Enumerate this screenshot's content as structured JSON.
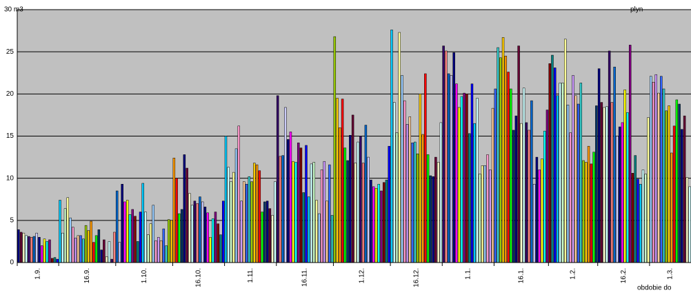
{
  "chart_data": {
    "type": "bar",
    "title": "plyn",
    "x_label": "obdobie do",
    "categories": [
      "1.9.",
      null,
      null,
      null,
      null,
      null,
      null,
      null,
      null,
      null,
      null,
      null,
      null,
      null,
      null,
      null,
      "16.9.",
      null,
      null,
      null,
      null,
      null,
      null,
      null,
      null,
      null,
      null,
      null,
      null,
      null,
      null,
      null,
      null,
      null,
      null,
      null,
      null,
      null,
      "1.10.",
      null,
      null,
      null,
      null,
      null,
      null,
      null,
      null,
      null,
      null,
      null,
      null,
      null,
      null,
      null,
      null,
      null,
      null,
      null,
      null,
      null,
      "16.10.",
      null,
      null,
      null,
      null,
      null,
      null,
      null,
      null,
      null,
      null,
      null,
      null,
      null,
      null,
      null,
      null,
      null,
      null,
      null,
      "1.11.",
      null,
      null,
      null,
      null,
      null,
      null,
      null,
      null,
      null,
      null,
      null,
      null,
      null,
      null,
      null,
      null,
      null,
      null,
      null,
      "16.11.",
      null,
      null,
      null,
      null,
      null,
      null,
      null,
      null,
      null,
      null,
      null,
      null,
      null,
      null,
      null,
      null,
      null,
      null,
      null,
      null,
      null,
      "1.12.",
      null,
      null,
      null,
      null,
      null,
      null,
      null,
      null,
      null,
      null,
      null,
      null,
      null,
      null,
      null,
      null,
      null,
      null,
      null,
      null,
      null,
      "16.12.",
      null,
      null,
      null,
      null,
      null,
      null,
      null,
      null,
      null,
      null,
      null,
      null,
      null,
      null,
      null,
      null,
      null,
      null,
      null,
      "1.1.",
      null,
      null,
      null,
      null,
      null,
      null,
      null,
      null,
      null,
      null,
      null,
      null,
      null,
      null,
      null,
      null,
      null,
      null,
      null,
      "16.1.",
      null,
      null,
      null,
      null,
      null,
      null,
      null,
      null,
      null,
      null,
      null,
      null,
      null,
      null,
      null,
      null,
      null,
      null,
      null,
      null,
      "1.2.",
      null,
      null,
      null,
      null,
      null,
      null,
      null,
      null,
      null,
      null,
      null,
      null,
      null,
      null,
      null,
      null,
      null,
      null,
      "16.2.",
      null,
      null,
      null,
      null,
      null,
      null,
      null,
      null,
      null,
      null,
      null,
      null,
      null,
      null,
      null,
      null,
      null,
      null,
      null,
      "1.3.",
      null,
      null,
      null,
      null,
      null,
      null,
      null,
      null,
      null,
      null,
      null,
      null,
      null,
      null,
      null
    ],
    "values": [
      3.9,
      3.6,
      3.5,
      3.2,
      3.1,
      3.0,
      3.1,
      3.5,
      3.0,
      2.0,
      2.8,
      2.5,
      2.7,
      0.5,
      0.6,
      0.4,
      7.4,
      3.5,
      6.4,
      7.7,
      5.3,
      4.2,
      2.9,
      3.2,
      3.2,
      2.8,
      4.4,
      3.8,
      4.9,
      2.4,
      3.2,
      3.9,
      1.5,
      2.7,
      0.7,
      2.5,
      0.4,
      3.6,
      8.5,
      2.4,
      9.3,
      7.2,
      7.4,
      5.7,
      6.3,
      5.5,
      2.5,
      6.0,
      9.4,
      6.0,
      3.3,
      4.6,
      6.8,
      2.6,
      3.0,
      2.6,
      4.0,
      2.0,
      5.1,
      5.0,
      12.4,
      10.0,
      5.8,
      6.3,
      12.8,
      11.2,
      8.2,
      6.8,
      7.3,
      7.0,
      7.8,
      7.2,
      6.6,
      5.9,
      3.0,
      5.2,
      6.0,
      4.6,
      3.3,
      7.3,
      15.0,
      11.3,
      9.6,
      10.7,
      13.5,
      16.2,
      7.3,
      9.6,
      9.3,
      10.2,
      9.6,
      11.8,
      11.6,
      10.9,
      6.0,
      7.2,
      7.3,
      6.4,
      5.6,
      9.6,
      19.8,
      12.6,
      12.7,
      18.4,
      14.6,
      15.5,
      12.0,
      11.9,
      14.2,
      13.6,
      8.3,
      13.9,
      7.8,
      11.7,
      11.9,
      7.4,
      5.8,
      11.0,
      12.0,
      7.3,
      11.6,
      5.6,
      26.8,
      19.5,
      16.0,
      19.4,
      13.6,
      12.1,
      15.1,
      17.5,
      11.8,
      14.3,
      15.0,
      11.8,
      16.3,
      12.5,
      9.8,
      9.0,
      8.8,
      9.3,
      8.5,
      9.5,
      9.8,
      13.8,
      27.6,
      19.0,
      15.4,
      27.3,
      22.2,
      19.2,
      16.4,
      17.3,
      14.2,
      14.3,
      12.9,
      20.0,
      15.2,
      22.4,
      12.8,
      10.3,
      10.2,
      12.5,
      11.9,
      16.6,
      25.7,
      25.1,
      22.4,
      22.2,
      24.9,
      21.2,
      18.4,
      19.7,
      20.1,
      20.0,
      15.3,
      21.2,
      16.5,
      19.5,
      10.5,
      11.5,
      11.5,
      12.8,
      11.0,
      18.3,
      20.6,
      25.5,
      24.3,
      26.7,
      24.5,
      22.6,
      20.6,
      15.7,
      17.4,
      25.7,
      16.5,
      20.7,
      16.6,
      15.7,
      19.2,
      9.3,
      12.5,
      11.0,
      12.3,
      15.6,
      18.1,
      23.6,
      24.6,
      23.1,
      19.8,
      21.3,
      21.3,
      26.5,
      18.7,
      15.4,
      22.2,
      19.8,
      18.8,
      21.3,
      12.1,
      11.9,
      13.8,
      11.7,
      13.1,
      18.6,
      23.0,
      19.0,
      18.4,
      18.5,
      25.1,
      19.0,
      23.2,
      15.0,
      16.1,
      16.6,
      20.5,
      17.8,
      25.8,
      10.6,
      12.7,
      9.9,
      9.3,
      11.0,
      10.5,
      17.2,
      22.1,
      21.4,
      22.3,
      20.1,
      22.1,
      20.6,
      18.0,
      18.6,
      13.0,
      16.2,
      19.3,
      18.8,
      15.8,
      17.4,
      10.1,
      9.0
    ],
    "colors": [
      "#000080",
      "#660033",
      "#ffffcc",
      "#ccffff",
      "#330066",
      "#ff8080",
      "#0066cc",
      "#ccccff",
      "#000080",
      "#ff00ff",
      "#ffff00",
      "#00ffff",
      "#800080",
      "#800000",
      "#008080",
      "#0000ff",
      "#00ccff",
      "#ccffff",
      "#ccffcc",
      "#ffff99",
      "#99ccff",
      "#ff99cc",
      "#cc99ff",
      "#ffcc99",
      "#3366ff",
      "#33cccc",
      "#99cc00",
      "#ffcc00",
      "#ff9900",
      "#ff0000",
      "#00ff00",
      "#003366"
    ],
    "ylim": [
      0,
      30
    ],
    "yticks": [
      0,
      5,
      10,
      15,
      20,
      25,
      {
        "value": 30,
        "label": "30 m3"
      }
    ],
    "grid": true
  }
}
